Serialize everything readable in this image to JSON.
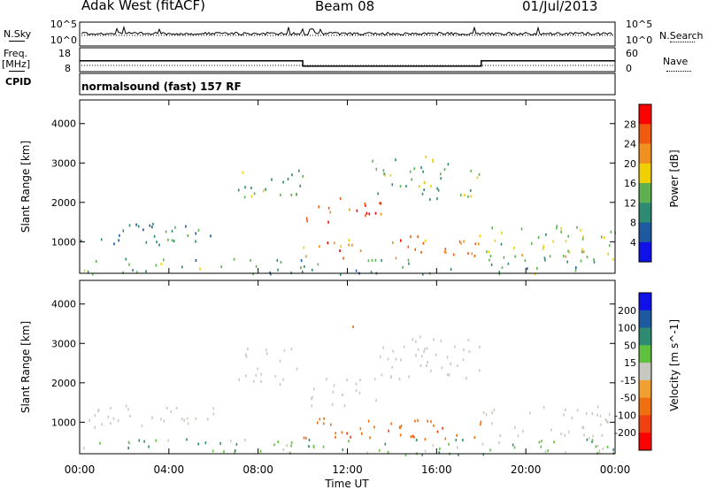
{
  "header": {
    "station": "Adak West (fitACF)",
    "beam": "Beam 08",
    "date": "01/Jul/2013"
  },
  "summary": {
    "nsky_label": "N.Sky",
    "nsearch_label": "N.Search",
    "freq_label": "Freq.",
    "freq_unit": "[MHz]",
    "nave_label": "Nave",
    "cpid_label": "CPID",
    "cpid_value": "normalsound (fast) 157 RF",
    "left_ticks_nsky": [
      "10^5",
      "10^0"
    ],
    "right_ticks_nsearch": [
      "10^5",
      "10^0"
    ],
    "freq_ticks": [
      "18",
      "8"
    ],
    "nave_ticks": [
      "60",
      "0"
    ]
  },
  "chart_data": [
    {
      "type": "heatmap",
      "panel": "power",
      "xlabel": "Time UT",
      "ylabel": "Slant Range [km]",
      "xlim": [
        0,
        24
      ],
      "ylim": [
        200,
        4600
      ],
      "x_ticks": [
        "00:00",
        "04:00",
        "08:00",
        "12:00",
        "16:00",
        "20:00",
        "00:00"
      ],
      "y_ticks": [
        1000,
        2000,
        3000,
        4000
      ],
      "colorbar": {
        "label": "Power [dB]",
        "ticks": [
          4,
          8,
          12,
          16,
          20,
          24,
          28
        ],
        "colors": [
          "#1010e8",
          "#1e5aa0",
          "#2e8a70",
          "#5fb050",
          "#f0d000",
          "#f09020",
          "#f05a10",
          "#ff0000"
        ]
      },
      "freq_steps": [
        {
          "start": 0,
          "end": 10,
          "freq": 12.5
        },
        {
          "start": 10,
          "end": 18,
          "freq": 10.3
        },
        {
          "start": 18,
          "end": 24,
          "freq": 12.5
        }
      ],
      "regions": [
        {
          "t0": 0.0,
          "t1": 6.0,
          "r0": 900,
          "r1": 1500,
          "level": 8
        },
        {
          "t0": 7.0,
          "t1": 10.0,
          "r0": 1950,
          "r1": 2900,
          "level": 10
        },
        {
          "t0": 10.0,
          "t1": 13.5,
          "r0": 1450,
          "r1": 2150,
          "level": 26
        },
        {
          "t0": 13.0,
          "t1": 18.0,
          "r0": 2100,
          "r1": 3200,
          "level": 11
        },
        {
          "t0": 10.0,
          "t1": 18.0,
          "r0": 600,
          "r1": 1200,
          "level": 22
        },
        {
          "t0": 18.0,
          "t1": 24.0,
          "r0": 600,
          "r1": 1450,
          "level": 14
        },
        {
          "t0": 0.0,
          "t1": 24.0,
          "r0": 200,
          "r1": 600,
          "level": 10
        }
      ]
    },
    {
      "type": "heatmap",
      "panel": "velocity",
      "xlabel": "Time UT",
      "ylabel": "Slant Range [km]",
      "xlim": [
        0,
        24
      ],
      "ylim": [
        200,
        4600
      ],
      "x_ticks": [
        "00:00",
        "04:00",
        "08:00",
        "12:00",
        "16:00",
        "20:00",
        "00:00"
      ],
      "y_ticks": [
        1000,
        2000,
        3000,
        4000
      ],
      "colorbar": {
        "label": "Velocity [m s^-1]",
        "ticks": [
          200,
          100,
          50,
          15,
          -15,
          -50,
          -100,
          -200
        ],
        "colors": [
          "#1010e8",
          "#1e5aa0",
          "#2e8a70",
          "#5fc040",
          "#c8c8c0",
          "#f0a030",
          "#f07010",
          "#f04010",
          "#ff0000"
        ]
      },
      "regions": [
        {
          "t0": 0.0,
          "t1": 6.0,
          "r0": 900,
          "r1": 1500,
          "level": 0
        },
        {
          "t0": 7.0,
          "t1": 10.0,
          "r0": 1950,
          "r1": 2900,
          "level": 0
        },
        {
          "t0": 10.0,
          "t1": 13.5,
          "r0": 1450,
          "r1": 2150,
          "level": 0
        },
        {
          "t0": 13.0,
          "t1": 18.0,
          "r0": 2100,
          "r1": 3200,
          "level": 0
        },
        {
          "t0": 10.0,
          "t1": 18.0,
          "r0": 600,
          "r1": 1200,
          "level": -60
        },
        {
          "t0": 18.0,
          "t1": 24.0,
          "r0": 600,
          "r1": 1450,
          "level": 0
        },
        {
          "t0": 0.0,
          "t1": 24.0,
          "r0": 200,
          "r1": 600,
          "level": 25
        },
        {
          "t0": 12.0,
          "t1": 12.6,
          "r0": 3200,
          "r1": 3500,
          "level": -70
        }
      ]
    }
  ]
}
